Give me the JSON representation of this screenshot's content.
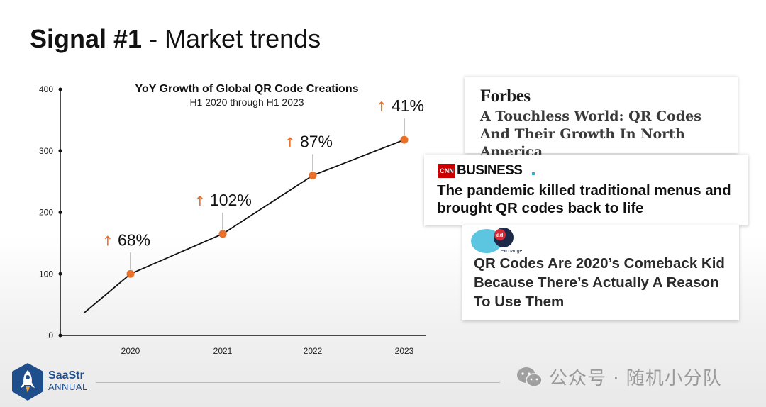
{
  "slide": {
    "title_bold": "Signal #1",
    "title_rest": " - Market trends"
  },
  "chart_data": {
    "type": "line",
    "title": "YoY Growth of Global QR Code Creations",
    "subtitle": "H1 2020 through H1 2023",
    "x": [
      "2020",
      "2021",
      "2022",
      "2023"
    ],
    "y_ticks": [
      0,
      100,
      200,
      300,
      400
    ],
    "ylim": [
      0,
      400
    ],
    "series": [
      {
        "values": [
          100,
          165,
          260,
          318
        ],
        "growth_labels": [
          "68%",
          "102%",
          "87%",
          "41%"
        ]
      }
    ],
    "lead_in_start": 36,
    "grid": false,
    "line_color": "#111111",
    "marker_color": "#e8702a",
    "arrow_color": "#e8702a"
  },
  "headlines": {
    "forbes": {
      "logo": "Forbes",
      "text": "A Touchless World: QR Codes And Their Growth In North America"
    },
    "cnn": {
      "logo_box": "CNN",
      "logo": "BUSINESS",
      "text": "The pandemic killed traditional menus and brought QR codes back to life"
    },
    "adexchanger": {
      "logo_ad": "ad",
      "logo_word": "exchanger",
      "text": "QR Codes Are 2020’s Comeback Kid Because There’s Actually A Reason To Use Them"
    }
  },
  "footer": {
    "brand_name": "SaaStr",
    "brand_sub": "ANNUAL",
    "watermark": "公众号 · 随机小分队"
  }
}
